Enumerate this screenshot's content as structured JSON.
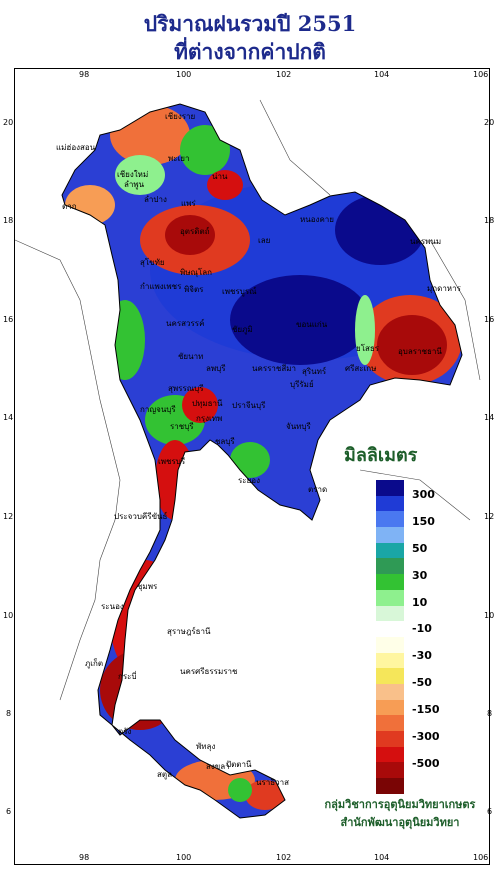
{
  "title_line1": "ปริมาณฝนรวมปี 2551",
  "title_line2": "ที่ต่างจากค่าปกติ",
  "longitude_ticks": [
    "98",
    "100",
    "102",
    "104",
    "106"
  ],
  "latitude_ticks": [
    "20",
    "18",
    "16",
    "14",
    "12",
    "10",
    "8",
    "6"
  ],
  "legend": {
    "unit": "มิลลิเมตร",
    "labels": [
      "300",
      "150",
      "50",
      "30",
      "10",
      "-10",
      "-30",
      "-50",
      "-150",
      "-300",
      "-500"
    ],
    "colors": [
      "#0a0a8c",
      "#1f3bd6",
      "#4a78f0",
      "#7fb3f5",
      "#1aa6a6",
      "#2f9a55",
      "#33c233",
      "#8ef08e",
      "#d8f7d8",
      "#ffffff",
      "#ffffe8",
      "#fff6a0",
      "#f5e65a",
      "#f9c08a",
      "#f79d55",
      "#f0703a",
      "#e03a20",
      "#d50f0f",
      "#a80a0a",
      "#7a0505"
    ]
  },
  "places": [
    "เชียงราย",
    "แม่ฮ่องสอน",
    "พะเยา",
    "เชียงใหม่",
    "ลำพูน",
    "น่าน",
    "ลำปาง",
    "แพร่",
    "อุตรดิตถ์",
    "หนองคาย",
    "นครพนม",
    "เลย",
    "สุโขทัย",
    "พิษณุโลก",
    "ตาก",
    "กำแพงเพชร",
    "พิจิตร",
    "เพชรบูรณ์",
    "มุกดาหาร",
    "นครสวรรค์",
    "ชัยภูมิ",
    "ขอนแก่น",
    "ยโสธร",
    "อุบลราชธานี",
    "ชัยนาท",
    "ลพบุรี",
    "สุรินทร์",
    "ศรีสะเกษ",
    "สุพรรณบุรี",
    "กาญจนบุรี",
    "นครราชสีมา",
    "บุรีรัมย์",
    "ปทุมธานี",
    "ราชบุรี",
    "ปราจีนบุรี",
    "กรุงเทพ",
    "ชลบุรี",
    "เพชรบุรี",
    "ระยอง",
    "จันทบุรี",
    "ตราด",
    "ประจวบคีรีขันธ์",
    "ชุมพร",
    "ระนอง",
    "สุราษฎร์ธานี",
    "นครศรีธรรมราช",
    "ภูเก็ต",
    "กระบี่",
    "ตรัง",
    "พัทลุง",
    "สงขลา",
    "สตูล",
    "ปัตตานี",
    "นราธิวาส"
  ],
  "credit_line1": "กลุ่มวิชาการอุตุนิยมวิทยาเกษตร",
  "credit_line2": "สำนักพัฒนาอุตุนิยมวิทยา"
}
